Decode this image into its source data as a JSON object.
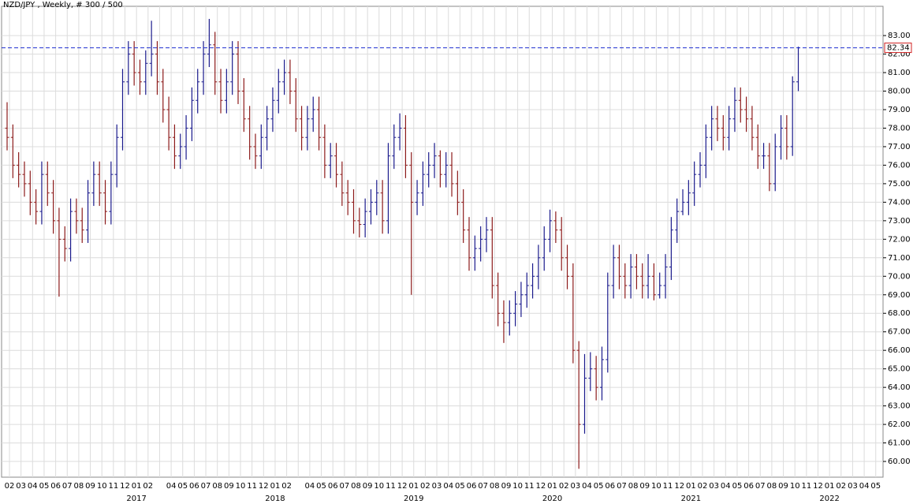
{
  "chart_data": {
    "type": "ohlc",
    "title": "NZD/JPY , Weekly, # 300 / 500",
    "up_color": "#1a1a8c",
    "down_color": "#8c1a1a",
    "last_price": 82.34,
    "last_price_color": "#1f2fd0",
    "ylim": [
      59.15,
      84.58
    ],
    "yticks": [
      {
        "value": 60,
        "label": "60.00"
      },
      {
        "value": 61,
        "label": "61.00"
      },
      {
        "value": 62,
        "label": "62.00"
      },
      {
        "value": 63,
        "label": "63.00"
      },
      {
        "value": 64,
        "label": "64.00"
      },
      {
        "value": 65,
        "label": "65.00"
      },
      {
        "value": 66,
        "label": "66.00"
      },
      {
        "value": 67,
        "label": "67.00"
      },
      {
        "value": 68,
        "label": "68.00"
      },
      {
        "value": 69,
        "label": "69.00"
      },
      {
        "value": 70,
        "label": "70.00"
      },
      {
        "value": 71,
        "label": "71.00"
      },
      {
        "value": 72,
        "label": "72.00"
      },
      {
        "value": 73,
        "label": "73.00"
      },
      {
        "value": 74,
        "label": "74.00"
      },
      {
        "value": 75,
        "label": "75.00"
      },
      {
        "value": 76,
        "label": "76.00"
      },
      {
        "value": 77,
        "label": "77.00"
      },
      {
        "value": 78,
        "label": "78.00"
      },
      {
        "value": 79,
        "label": "79.00"
      },
      {
        "value": 80,
        "label": "80.00"
      },
      {
        "value": 81,
        "label": "81.00"
      },
      {
        "value": 82,
        "label": "82.00"
      },
      {
        "value": 83,
        "label": "83.00"
      }
    ],
    "grid": true,
    "months": [
      "02",
      "03",
      "04",
      "05",
      "06",
      "07",
      "08",
      "09",
      "10",
      "11",
      "12",
      "01",
      "02",
      null,
      "04",
      "05",
      "06",
      "07",
      "08",
      "09",
      "10",
      "11",
      "12",
      "01",
      "02",
      null,
      "04",
      "05",
      "06",
      "07",
      "08",
      "09",
      "10",
      "11",
      "12",
      "01",
      "02",
      "03",
      "04",
      "05",
      "06",
      "07",
      "08",
      "09",
      "10",
      "11",
      "12",
      "01",
      "02",
      "03",
      "04",
      "05",
      "06",
      "07",
      "08",
      "09",
      "10",
      "11",
      "12",
      "01",
      "02",
      "03",
      "04",
      "05",
      "06",
      "07",
      "08",
      "09",
      "10",
      "11",
      "12",
      "01",
      "02",
      "03",
      "04",
      "05"
    ],
    "years": [
      "2017",
      "2018",
      "2019",
      "2020",
      "2021",
      "2022"
    ],
    "bars": [
      [
        78,
        79.4,
        76.8,
        77.5
      ],
      [
        77.5,
        78.2,
        75.3,
        76
      ],
      [
        76,
        76.7,
        74.8,
        75.5
      ],
      [
        75.5,
        76.2,
        74.3,
        75
      ],
      [
        75,
        75.7,
        73.3,
        74
      ],
      [
        74,
        74.7,
        72.8,
        73.5
      ],
      [
        73.5,
        76.2,
        72.8,
        75.5
      ],
      [
        75.5,
        76.2,
        73.8,
        74.5
      ],
      [
        74.5,
        75.2,
        72.3,
        73
      ],
      [
        73,
        73.7,
        68.9,
        72
      ],
      [
        72,
        72.7,
        70.8,
        71.5
      ],
      [
        71.5,
        74.2,
        70.8,
        73.5
      ],
      [
        73.5,
        74.2,
        72.3,
        73
      ],
      [
        73,
        73.7,
        71.8,
        72.5
      ],
      [
        72.5,
        75.2,
        71.8,
        74.5
      ],
      [
        74.5,
        76.2,
        73.8,
        75.5
      ],
      [
        75.5,
        76.2,
        73.8,
        74.5
      ],
      [
        74.5,
        75.2,
        72.8,
        73.5
      ],
      [
        73.5,
        76.2,
        72.8,
        75.5
      ],
      [
        75.5,
        78.2,
        74.8,
        77.5
      ],
      [
        77.5,
        81.2,
        76.8,
        80.5
      ],
      [
        80.5,
        82.7,
        79.8,
        82
      ],
      [
        82,
        82.7,
        80.3,
        81
      ],
      [
        81,
        81.7,
        79.8,
        80.5
      ],
      [
        80.5,
        82.2,
        79.8,
        81.5
      ],
      [
        81.5,
        83.8,
        80.8,
        82
      ],
      [
        82,
        82.7,
        79.8,
        80.5
      ],
      [
        80.5,
        81.2,
        78.3,
        79
      ],
      [
        79,
        79.7,
        76.8,
        77.5
      ],
      [
        77.5,
        78.2,
        75.8,
        76.5
      ],
      [
        76.5,
        77.7,
        75.8,
        77
      ],
      [
        77,
        78.7,
        76.3,
        78
      ],
      [
        78,
        80.2,
        77.3,
        79.5
      ],
      [
        79.5,
        81.2,
        78.8,
        80.5
      ],
      [
        80.5,
        82.7,
        79.8,
        82
      ],
      [
        82,
        83.9,
        81.3,
        82.5
      ],
      [
        82.5,
        83.2,
        79.8,
        80.5
      ],
      [
        80.5,
        81.2,
        78.8,
        79.5
      ],
      [
        79.5,
        81.2,
        78.8,
        80.5
      ],
      [
        80.5,
        82.7,
        79.8,
        82
      ],
      [
        82,
        82.7,
        79.3,
        80
      ],
      [
        80,
        80.7,
        77.8,
        78.5
      ],
      [
        78.5,
        79.2,
        76.3,
        77
      ],
      [
        77,
        77.7,
        75.8,
        76.5
      ],
      [
        76.5,
        78.2,
        75.8,
        77.5
      ],
      [
        77.5,
        79.2,
        76.8,
        78.5
      ],
      [
        78.5,
        80.2,
        77.8,
        79.5
      ],
      [
        79.5,
        81.2,
        78.8,
        80.5
      ],
      [
        80.5,
        81.7,
        79.8,
        81
      ],
      [
        81,
        81.7,
        79.3,
        80
      ],
      [
        80,
        80.7,
        77.8,
        78.5
      ],
      [
        78.5,
        79.2,
        76.8,
        77.5
      ],
      [
        77.5,
        79.2,
        76.8,
        78.5
      ],
      [
        78.5,
        79.7,
        77.8,
        79
      ],
      [
        79,
        79.7,
        76.8,
        77.5
      ],
      [
        77.5,
        78.2,
        75.3,
        76
      ],
      [
        76,
        77.2,
        75.3,
        76.5
      ],
      [
        76.5,
        77.2,
        74.8,
        75.5
      ],
      [
        75.5,
        76.2,
        73.8,
        74.5
      ],
      [
        74.5,
        75.2,
        73.3,
        74
      ],
      [
        74,
        74.7,
        72.3,
        73
      ],
      [
        73,
        73.7,
        72.1,
        72.8
      ],
      [
        72.8,
        74.2,
        72.1,
        73.5
      ],
      [
        73.5,
        74.7,
        72.8,
        74
      ],
      [
        74,
        75.2,
        73.3,
        74.5
      ],
      [
        74.5,
        75.2,
        72.3,
        73
      ],
      [
        73,
        77.2,
        72.3,
        76.5
      ],
      [
        76.5,
        78.2,
        75.8,
        77.5
      ],
      [
        77.5,
        78.8,
        76.8,
        78
      ],
      [
        78,
        78.7,
        75.3,
        76
      ],
      [
        76,
        76.7,
        69,
        74
      ],
      [
        74,
        75.2,
        73.3,
        74.5
      ],
      [
        74.5,
        76.2,
        73.8,
        75.5
      ],
      [
        75.5,
        76.7,
        74.8,
        76
      ],
      [
        76,
        77.2,
        75.3,
        76.5
      ],
      [
        76.5,
        76.8,
        74.8,
        75.5
      ],
      [
        75.5,
        76.7,
        74.8,
        76
      ],
      [
        76,
        76.7,
        74.3,
        75
      ],
      [
        75,
        75.7,
        73.3,
        74
      ],
      [
        74,
        74.7,
        71.8,
        72.5
      ],
      [
        72.5,
        73.2,
        70.3,
        71
      ],
      [
        71,
        72.2,
        70.3,
        71.5
      ],
      [
        71.5,
        72.7,
        70.8,
        72
      ],
      [
        72,
        73.2,
        71.3,
        72.5
      ],
      [
        72.5,
        73.2,
        68.8,
        69.5
      ],
      [
        69.5,
        70.2,
        67.3,
        68
      ],
      [
        68,
        68.7,
        66.4,
        67.5
      ],
      [
        67.5,
        68.7,
        66.8,
        68
      ],
      [
        68,
        69.2,
        67.3,
        68.5
      ],
      [
        68.5,
        69.7,
        67.8,
        69
      ],
      [
        69,
        70.2,
        68.3,
        69.5
      ],
      [
        69.5,
        70.7,
        68.8,
        70
      ],
      [
        70,
        71.7,
        69.3,
        71
      ],
      [
        71,
        72.7,
        70.3,
        72
      ],
      [
        72,
        73.6,
        71.3,
        73
      ],
      [
        73,
        73.5,
        71.8,
        72.5
      ],
      [
        72.5,
        73.2,
        70.3,
        71
      ],
      [
        71,
        71.7,
        69.3,
        70
      ],
      [
        70,
        70.7,
        65.3,
        66
      ],
      [
        66,
        66.5,
        59.6,
        62
      ],
      [
        62,
        65.8,
        61.5,
        64.5
      ],
      [
        64.5,
        65.9,
        63.8,
        65
      ],
      [
        65,
        65.7,
        63.3,
        64
      ],
      [
        64,
        66.2,
        63.3,
        65.5
      ],
      [
        65.5,
        70.2,
        64.8,
        69.5
      ],
      [
        69.5,
        71.7,
        68.8,
        71
      ],
      [
        71,
        71.7,
        69.3,
        70
      ],
      [
        70,
        70.7,
        68.8,
        69.5
      ],
      [
        69.5,
        71.2,
        68.8,
        70.5
      ],
      [
        70.5,
        71.2,
        69.3,
        70
      ],
      [
        70,
        70.7,
        68.8,
        69.5
      ],
      [
        69.5,
        71.2,
        68.8,
        70
      ],
      [
        70,
        70.7,
        68.7,
        69
      ],
      [
        69,
        70.2,
        68.8,
        69.5
      ],
      [
        69.5,
        71.2,
        68.8,
        70.5
      ],
      [
        70.5,
        73.2,
        69.8,
        72.5
      ],
      [
        72.5,
        74.2,
        71.8,
        73.5
      ],
      [
        73.5,
        74.7,
        73.3,
        74
      ],
      [
        74,
        75.2,
        73.3,
        74.5
      ],
      [
        74.5,
        76.2,
        73.8,
        75.5
      ],
      [
        75.5,
        76.7,
        74.8,
        76
      ],
      [
        76,
        78.2,
        75.3,
        77.5
      ],
      [
        77.5,
        79.2,
        76.8,
        78.5
      ],
      [
        78.5,
        79.2,
        77.3,
        78
      ],
      [
        78,
        78.7,
        76.8,
        77.5
      ],
      [
        77.5,
        79.2,
        76.8,
        78.5
      ],
      [
        78.5,
        80.2,
        77.8,
        79.5
      ],
      [
        79.5,
        80.2,
        78.3,
        79
      ],
      [
        79,
        79.7,
        77.8,
        78.5
      ],
      [
        78.5,
        79.2,
        76.8,
        77.5
      ],
      [
        77.5,
        78.2,
        75.8,
        76.5
      ],
      [
        76.5,
        77.2,
        75.8,
        76.5
      ],
      [
        76.5,
        77.2,
        74.6,
        75
      ],
      [
        75,
        77.7,
        74.6,
        77
      ],
      [
        77,
        78.7,
        76.3,
        78
      ],
      [
        78,
        78.7,
        76.3,
        77
      ],
      [
        77,
        80.8,
        76.5,
        80.5
      ],
      [
        80.5,
        82.4,
        80,
        82.34
      ]
    ]
  }
}
